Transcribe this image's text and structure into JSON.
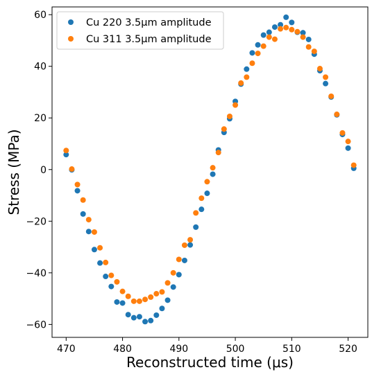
{
  "chart_data": {
    "type": "scatter",
    "xlabel": "Reconstructed time (μs)",
    "ylabel": "Stress (MPa)",
    "xlim": [
      467.5,
      523.5
    ],
    "ylim": [
      -65,
      63
    ],
    "xticks": [
      470,
      480,
      490,
      500,
      510,
      520
    ],
    "yticks": [
      -60,
      -40,
      -20,
      0,
      20,
      40,
      60
    ],
    "xtick_labels": [
      "470",
      "480",
      "490",
      "500",
      "510",
      "520"
    ],
    "ytick_labels": [
      "−60",
      "−40",
      "−20",
      "0",
      "20",
      "40",
      "60"
    ],
    "legend_position": "upper-left",
    "grid": false,
    "series": [
      {
        "name": "Cu 220 3.5μm amplitude",
        "color": "#1f77b4",
        "points": [
          [
            470,
            5.8
          ],
          [
            471,
            -0.1
          ],
          [
            472,
            -8.2
          ],
          [
            473,
            -17.2
          ],
          [
            474,
            -24
          ],
          [
            475,
            -31
          ],
          [
            476,
            -36.2
          ],
          [
            477,
            -41.4
          ],
          [
            478,
            -45.3
          ],
          [
            479,
            -51.3
          ],
          [
            480,
            -51.7
          ],
          [
            481,
            -56.2
          ],
          [
            482,
            -57.4
          ],
          [
            483,
            -57
          ],
          [
            484,
            -58.9
          ],
          [
            485,
            -58.5
          ],
          [
            486,
            -56.4
          ],
          [
            487,
            -53.8
          ],
          [
            488,
            -50.6
          ],
          [
            489,
            -45.5
          ],
          [
            490,
            -40.7
          ],
          [
            491,
            -35.2
          ],
          [
            492,
            -29.2
          ],
          [
            493,
            -22.3
          ],
          [
            494,
            -15.4
          ],
          [
            495,
            -9.2
          ],
          [
            496,
            -1.8
          ],
          [
            497,
            7.6
          ],
          [
            498,
            14.4
          ],
          [
            499,
            19.7
          ],
          [
            500,
            26.4
          ],
          [
            501,
            33.1
          ],
          [
            502,
            38.9
          ],
          [
            503,
            45.2
          ],
          [
            504,
            48.3
          ],
          [
            505,
            52.1
          ],
          [
            506,
            53.2
          ],
          [
            507,
            55.2
          ],
          [
            508,
            56.1
          ],
          [
            509,
            59
          ],
          [
            510,
            57
          ],
          [
            511,
            53.2
          ],
          [
            512,
            53
          ],
          [
            513,
            50.4
          ],
          [
            514,
            44.7
          ],
          [
            515,
            38.3
          ],
          [
            516,
            33.3
          ],
          [
            517,
            28.1
          ],
          [
            518,
            21.2
          ],
          [
            519,
            13.6
          ],
          [
            520,
            8.3
          ],
          [
            521,
            0.5
          ]
        ]
      },
      {
        "name": "Cu 311 3.5μm amplitude",
        "color": "#ff7f0e",
        "points": [
          [
            470,
            7.4
          ],
          [
            471,
            0.2
          ],
          [
            472,
            -5.8
          ],
          [
            473,
            -11.8
          ],
          [
            474,
            -19.4
          ],
          [
            475,
            -24.2
          ],
          [
            476,
            -30.3
          ],
          [
            477,
            -36
          ],
          [
            478,
            -41
          ],
          [
            479,
            -43.5
          ],
          [
            480,
            -47.2
          ],
          [
            481,
            -49.1
          ],
          [
            482,
            -51
          ],
          [
            483,
            -51
          ],
          [
            484,
            -50.3
          ],
          [
            485,
            -49.4
          ],
          [
            486,
            -48.1
          ],
          [
            487,
            -47.4
          ],
          [
            488,
            -43.9
          ],
          [
            489,
            -40
          ],
          [
            490,
            -34.8
          ],
          [
            491,
            -29.3
          ],
          [
            492,
            -27.2
          ],
          [
            493,
            -16.8
          ],
          [
            494,
            -11.1
          ],
          [
            495,
            -4.7
          ],
          [
            496,
            0.7
          ],
          [
            497,
            6.6
          ],
          [
            498,
            15.7
          ],
          [
            499,
            20.6
          ],
          [
            500,
            25
          ],
          [
            501,
            33.5
          ],
          [
            502,
            35.8
          ],
          [
            503,
            41.2
          ],
          [
            504,
            45
          ],
          [
            505,
            47.8
          ],
          [
            506,
            51.3
          ],
          [
            507,
            50.5
          ],
          [
            508,
            54.5
          ],
          [
            509,
            55
          ],
          [
            510,
            54.2
          ],
          [
            511,
            53.4
          ],
          [
            512,
            51.3
          ],
          [
            513,
            47.5
          ],
          [
            514,
            45.8
          ],
          [
            515,
            39.1
          ],
          [
            516,
            35.8
          ],
          [
            517,
            28.4
          ],
          [
            518,
            21.4
          ],
          [
            519,
            14.2
          ],
          [
            520,
            10.9
          ],
          [
            521,
            1.7
          ]
        ]
      }
    ]
  }
}
